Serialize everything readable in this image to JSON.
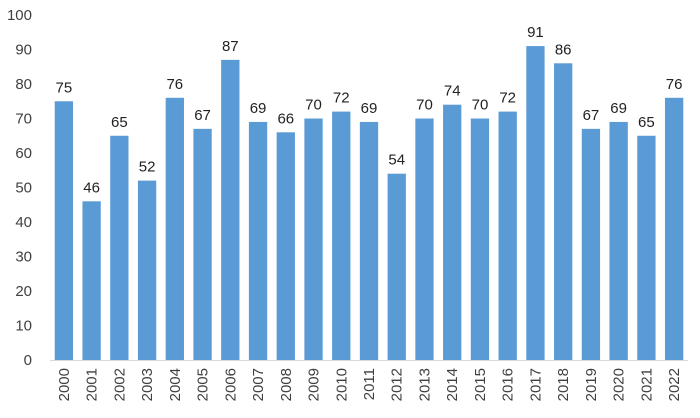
{
  "chart_data": {
    "type": "bar",
    "title": "",
    "xlabel": "",
    "ylabel": "",
    "categories": [
      "2000",
      "2001",
      "2002",
      "2003",
      "2004",
      "2005",
      "2006",
      "2007",
      "2008",
      "2009",
      "2010",
      "2011",
      "2012",
      "2013",
      "2014",
      "2015",
      "2016",
      "2017",
      "2018",
      "2019",
      "2020",
      "2021",
      "2022"
    ],
    "values": [
      75,
      46,
      65,
      52,
      76,
      67,
      87,
      69,
      66,
      70,
      72,
      69,
      54,
      70,
      74,
      70,
      72,
      91,
      86,
      67,
      69,
      65,
      76
    ],
    "ylim": [
      0,
      100
    ],
    "yticks": [
      0,
      10,
      20,
      30,
      40,
      50,
      60,
      70,
      80,
      90,
      100
    ],
    "grid": false,
    "legend": "none",
    "data_labels": true,
    "colors": {
      "bar": "#5b9bd5",
      "axis": "#d9d9d9",
      "tick_text": "#404040",
      "label_text": "#222222"
    }
  }
}
